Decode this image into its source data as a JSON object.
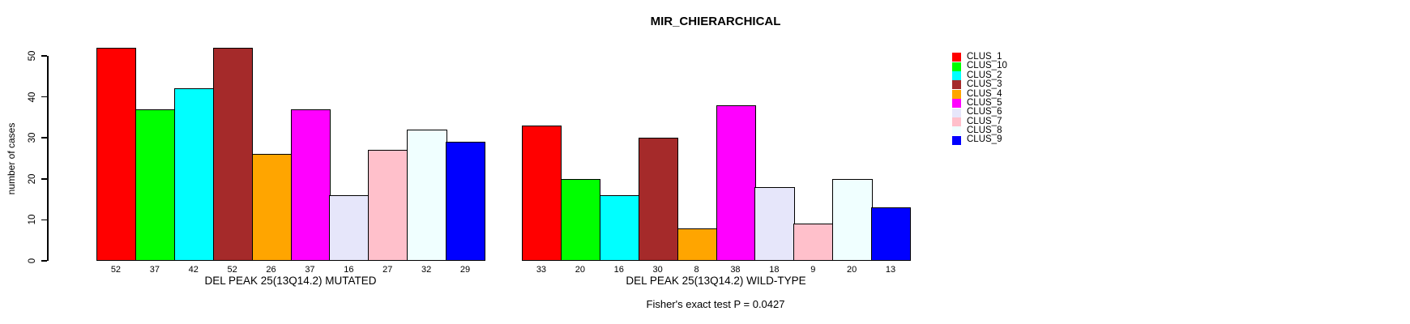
{
  "chart_data": {
    "type": "bar",
    "title": "MIR_CHIERARCHICAL",
    "ylabel": "number of cases",
    "xlabel": "",
    "ylim": [
      0,
      52
    ],
    "yticks": [
      0,
      10,
      20,
      30,
      40,
      50
    ],
    "grid": false,
    "legend_position": "right",
    "annotation": "Fisher's exact test P = 0.0427",
    "categories": [
      "CLUS_1",
      "CLUS_10",
      "CLUS_2",
      "CLUS_3",
      "CLUS_4",
      "CLUS_5",
      "CLUS_6",
      "CLUS_7",
      "CLUS_8",
      "CLUS_9"
    ],
    "colors": [
      "#FF0000",
      "#00FF00",
      "#00FFFF",
      "#A52A2A",
      "#FFA500",
      "#FF00FF",
      "#E6E6FA",
      "#FFC0CB",
      "#F0FFFF",
      "#0000FF"
    ],
    "groups": [
      {
        "label": "DEL PEAK 25(13Q14.2) MUTATED",
        "values": [
          52,
          37,
          42,
          52,
          26,
          37,
          16,
          27,
          32,
          29
        ]
      },
      {
        "label": "DEL PEAK 25(13Q14.2) WILD-TYPE",
        "values": [
          33,
          20,
          16,
          30,
          8,
          38,
          18,
          9,
          20,
          13
        ]
      }
    ],
    "legend": [
      {
        "label": "CLUS_1",
        "color": "#FF0000"
      },
      {
        "label": "CLUS_10",
        "color": "#00FF00"
      },
      {
        "label": "CLUS_2",
        "color": "#00FFFF"
      },
      {
        "label": "CLUS_3",
        "color": "#A52A2A"
      },
      {
        "label": "CLUS_4",
        "color": "#FFA500"
      },
      {
        "label": "CLUS_5",
        "color": "#FF00FF"
      },
      {
        "label": "CLUS_6",
        "color": "#E6E6FA"
      },
      {
        "label": "CLUS_7",
        "color": "#FFC0CB"
      },
      {
        "label": "CLUS_8",
        "color": "#F0FFFF"
      },
      {
        "label": "CLUS_9",
        "color": "#0000FF"
      }
    ]
  }
}
